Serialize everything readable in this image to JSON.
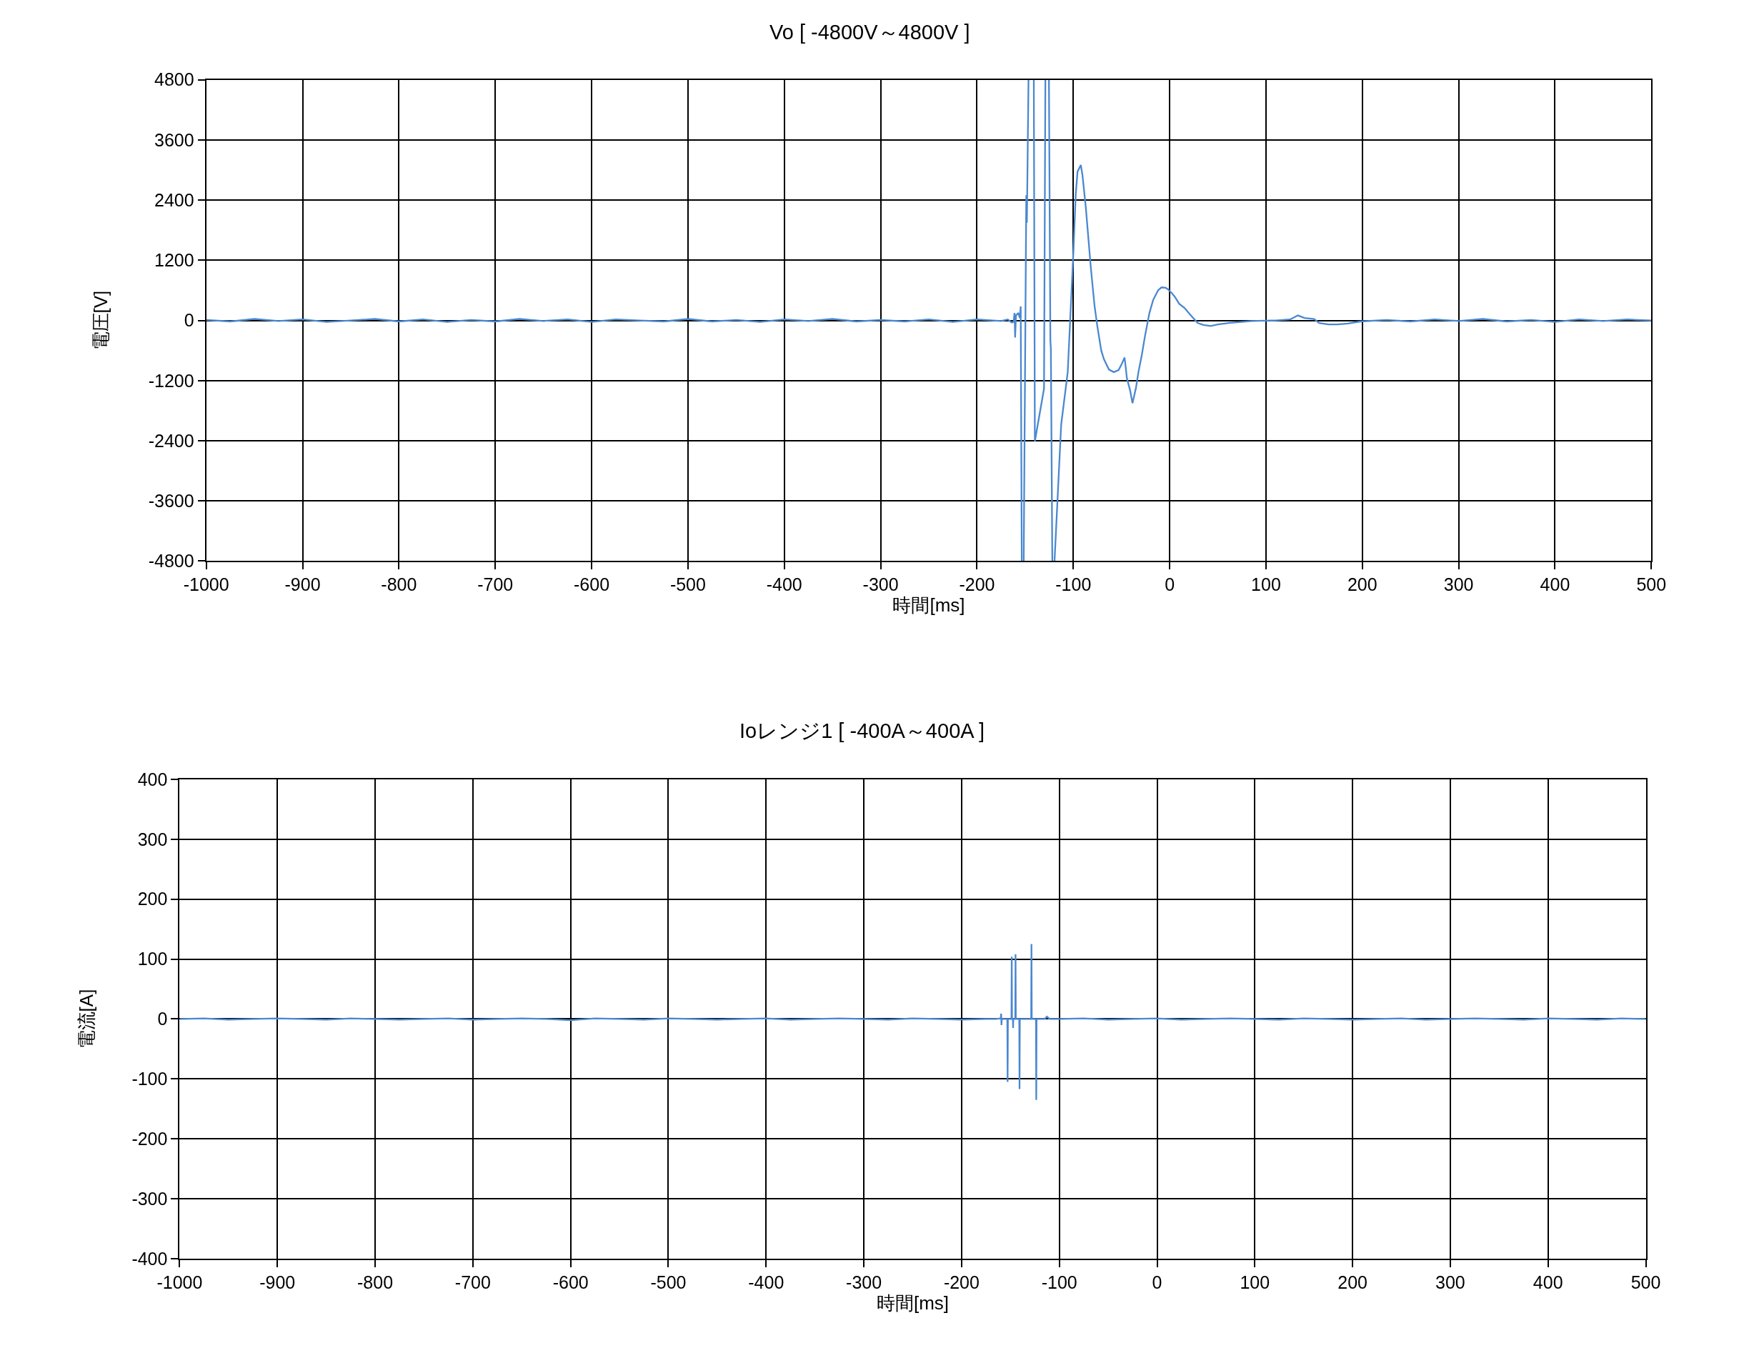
{
  "chart_data": [
    {
      "type": "line",
      "title": "Vo [ -4800V～4800V ]",
      "xlabel": "時間[ms]",
      "ylabel": "電圧[V]",
      "xlim": [
        -1000,
        500
      ],
      "ylim": [
        -4800,
        4800
      ],
      "xticks": [
        -1000,
        -900,
        -800,
        -700,
        -600,
        -500,
        -400,
        -300,
        -200,
        -100,
        0,
        100,
        200,
        300,
        400,
        500
      ],
      "yticks": [
        -4800,
        -3600,
        -2400,
        -1200,
        0,
        1200,
        2400,
        3600,
        4800
      ],
      "grid": true,
      "x": [
        -1000,
        -975,
        -950,
        -925,
        -900,
        -875,
        -850,
        -825,
        -800,
        -775,
        -750,
        -725,
        -700,
        -675,
        -650,
        -625,
        -600,
        -575,
        -550,
        -525,
        -500,
        -475,
        -450,
        -425,
        -400,
        -375,
        -350,
        -325,
        -300,
        -275,
        -250,
        -225,
        -200,
        -175,
        -168,
        -164,
        -162,
        -161,
        -160.4,
        -159.5,
        -157,
        -155.5,
        -154.6,
        -153.5,
        -152.8,
        -151.5,
        -148.8,
        -148.2,
        -146.5,
        -143,
        -141,
        -139.9,
        -130.4,
        -129,
        -127,
        -125.3,
        -123.8,
        -123.3,
        -121.8,
        -120.6,
        -119.5,
        -112.6,
        -105.8,
        -100,
        -97.5,
        -95.6,
        -93.5,
        -92.2,
        -90.5,
        -87,
        -81.9,
        -78,
        -75.1,
        -71,
        -68.3,
        -63,
        -58,
        -53,
        -50,
        -46.8,
        -45.5,
        -44.4,
        -41,
        -38.6,
        -35,
        -32.4,
        -29,
        -25.6,
        -21,
        -17.1,
        -12,
        -8.5,
        -4,
        -1.7,
        2,
        5.1,
        10,
        15.4,
        22,
        29,
        35,
        42.7,
        50,
        61.4,
        85.3,
        110,
        125,
        133.1,
        140,
        150,
        155,
        165,
        174.1,
        185,
        198,
        225,
        250,
        275,
        300,
        325,
        350,
        375,
        400,
        425,
        450,
        475,
        500
      ],
      "series": [
        {
          "color": "#4a88d0",
          "values": [
            10,
            -20,
            30,
            -10,
            20,
            -30,
            0,
            30,
            -20,
            20,
            -30,
            10,
            -20,
            30,
            -10,
            20,
            -30,
            20,
            0,
            -20,
            30,
            -20,
            10,
            -30,
            20,
            -10,
            30,
            -20,
            10,
            -20,
            20,
            -30,
            20,
            -10,
            20,
            -40,
            -30,
            150,
            -340,
            100,
            150,
            50,
            280,
            -4800,
            null,
            -4800,
            2500,
            1950,
            4800,
            null,
            4800,
            -2410,
            -1360,
            4800,
            null,
            4800,
            -400,
            -570,
            -4800,
            null,
            -4800,
            -2080,
            -1030,
            1330,
            2510,
            2970,
            3050,
            3100,
            2900,
            2250,
            1070,
            300,
            -110,
            -600,
            -770,
            -980,
            -1030,
            -990,
            -880,
            -740,
            -950,
            -1150,
            -1400,
            -1650,
            -1350,
            -1030,
            -700,
            -310,
            150,
            410,
            600,
            660,
            650,
            620,
            550,
            480,
            330,
            250,
            100,
            -50,
            -90,
            -110,
            -80,
            -50,
            -10,
            0,
            20,
            100,
            50,
            30,
            -50,
            -80,
            -80,
            -60,
            -20,
            10,
            -20,
            20,
            -10,
            30,
            -20,
            10,
            -30,
            20,
            -10,
            20,
            0
          ]
        }
      ]
    },
    {
      "type": "line",
      "title": "Ioレンジ1 [ -400A～400A ]",
      "xlabel": "時間[ms]",
      "ylabel": "電流[A]",
      "xlim": [
        -1000,
        500
      ],
      "ylim": [
        -400,
        400
      ],
      "xticks": [
        -1000,
        -900,
        -800,
        -700,
        -600,
        -500,
        -400,
        -300,
        -200,
        -100,
        0,
        100,
        200,
        300,
        400,
        500
      ],
      "yticks": [
        -400,
        -300,
        -200,
        -100,
        0,
        100,
        200,
        300,
        400
      ],
      "grid": true,
      "x": [
        -1000,
        -975,
        -950,
        -925,
        -900,
        -875,
        -850,
        -825,
        -800,
        -775,
        -750,
        -725,
        -700,
        -675,
        -650,
        -625,
        -600,
        -575,
        -550,
        -525,
        -500,
        -475,
        -450,
        -425,
        -400,
        -375,
        -350,
        -325,
        -300,
        -275,
        -250,
        -225,
        -200,
        -175,
        -165,
        -160,
        -159.5,
        -159.2,
        -158.9,
        -153.2,
        -152.9,
        -152.6,
        -149,
        -148.7,
        -148.4,
        -147.5,
        -147.3,
        -147.1,
        -145.1,
        -144.8,
        -144.5,
        -141,
        -140.7,
        -140.4,
        -128.8,
        -128.5,
        -128.2,
        -123.9,
        -123.6,
        -123.3,
        -115,
        -112.7,
        -110,
        -100,
        -75,
        -50,
        -25,
        0,
        25,
        50,
        75,
        100,
        125,
        150,
        175,
        200,
        225,
        250,
        275,
        300,
        325,
        350,
        375,
        400,
        425,
        450,
        475,
        500
      ],
      "series": [
        {
          "color": "#4a88d0",
          "values": [
            0,
            1,
            -1,
            0,
            1,
            0,
            -1,
            1,
            0,
            -1,
            0,
            1,
            -1,
            0,
            1,
            0,
            -2,
            1,
            0,
            -1,
            1,
            0,
            -1,
            0,
            1,
            -1,
            0,
            1,
            0,
            -1,
            1,
            0,
            -1,
            0,
            0,
            1,
            9,
            -10,
            0,
            0,
            -105,
            0,
            0,
            104,
            0,
            0,
            -15,
            0,
            0,
            108,
            0,
            0,
            -117,
            0,
            0,
            125,
            0,
            0,
            -135,
            0,
            0,
            4,
            0,
            0,
            1,
            -1,
            0,
            1,
            -1,
            0,
            1,
            0,
            -1,
            1,
            0,
            -1,
            0,
            1,
            -1,
            0,
            1,
            0,
            -1,
            1,
            0,
            -1,
            1,
            0
          ]
        }
      ]
    }
  ]
}
